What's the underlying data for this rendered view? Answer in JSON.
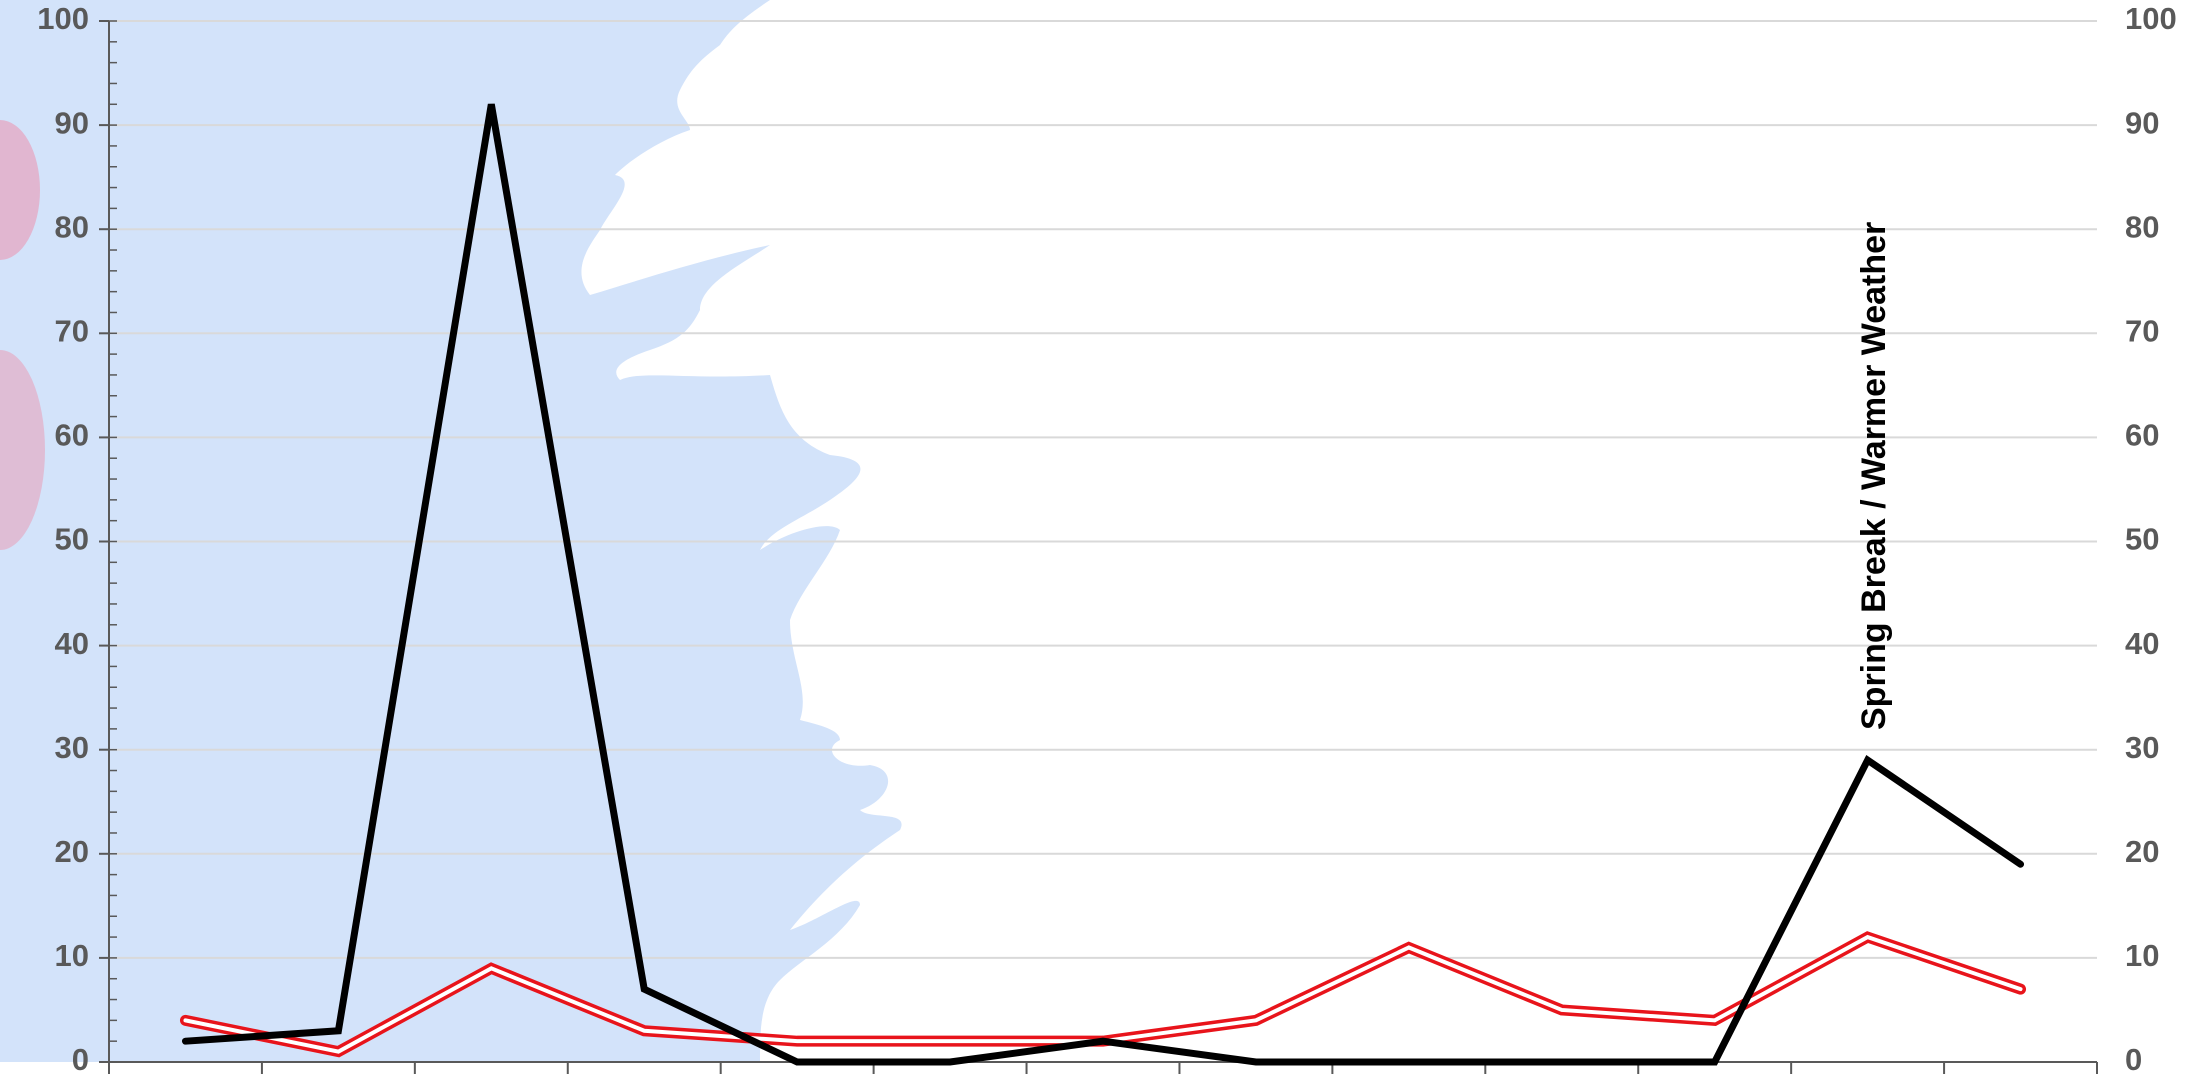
{
  "chart_data": {
    "type": "line",
    "annotation": "Spring Break / Warmer Weather",
    "categories": [
      null,
      null,
      null,
      null,
      null,
      null,
      null,
      null,
      null,
      null,
      null,
      null,
      null
    ],
    "series": [
      {
        "color": "#000000",
        "values": [
          2,
          3,
          92,
          7,
          0,
          0,
          2,
          0,
          0,
          0,
          0,
          29,
          19
        ]
      },
      {
        "color": "#e8141b",
        "style": "double",
        "values": [
          4,
          1,
          9,
          3,
          2,
          2,
          2,
          4,
          11,
          5,
          4,
          12,
          7
        ]
      }
    ],
    "ylim": [
      0,
      100
    ],
    "yticks": [
      0,
      10,
      20,
      30,
      40,
      50,
      60,
      70,
      80,
      90,
      100
    ],
    "y2lim": [
      0,
      100
    ],
    "y2ticks": [
      0,
      10,
      20,
      30,
      40,
      50,
      60,
      70,
      80,
      90,
      100
    ],
    "grid": true
  }
}
